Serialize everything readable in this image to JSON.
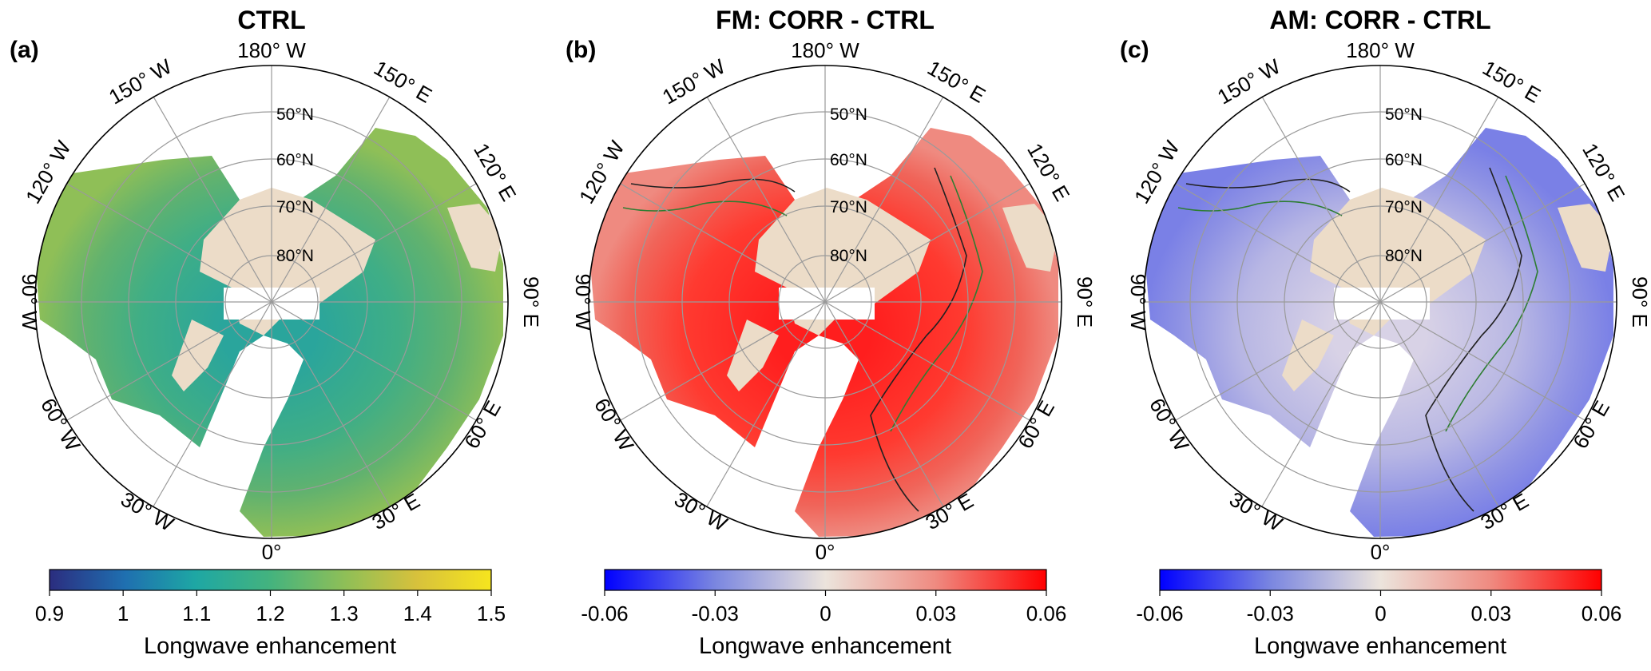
{
  "colors": {
    "land_mask": "#ecdcc8",
    "coast": "#222222",
    "contour_green": "#2e7d32",
    "grid": "#9a9a9a"
  },
  "colormaps": {
    "viridis_like": [
      "#2b2d7f",
      "#1f6fb0",
      "#1ea7a4",
      "#44b37e",
      "#8fbf57",
      "#d7c13c",
      "#f6e51e"
    ],
    "diverging": [
      "#0000ff",
      "#7a86e0",
      "#ece4dc",
      "#ef8a80",
      "#ff0000"
    ]
  },
  "chart_data": [
    {
      "type": "heatmap",
      "panel_label": "(a)",
      "title": "CTRL",
      "projection": "north-polar-stereographic",
      "longitude_labels": [
        "180° W",
        "150° E",
        "120° E",
        "90° E",
        "60° E",
        "30° E",
        "0°",
        "30° W",
        "60° W",
        "90° W",
        "120° W",
        "150° W"
      ],
      "latitude_labels": [
        "50°N",
        "60°N",
        "70°N",
        "80°N"
      ],
      "colorbar": {
        "label": "Longwave enhancement",
        "range": [
          0.9,
          1.5
        ],
        "ticks": [
          "0.9",
          "1",
          "1.1",
          "1.2",
          "1.3",
          "1.4",
          "1.5"
        ],
        "colormap": "viridis_like"
      },
      "typical_value": 1.22
    },
    {
      "type": "heatmap",
      "panel_label": "(b)",
      "title": "FM: CORR - CTRL",
      "projection": "north-polar-stereographic",
      "longitude_labels": [
        "180° W",
        "150° E",
        "120° E",
        "90° E",
        "60° E",
        "30° E",
        "0°",
        "30° W",
        "60° W",
        "90° W",
        "120° W",
        "150° W"
      ],
      "latitude_labels": [
        "50°N",
        "60°N",
        "70°N",
        "80°N"
      ],
      "colorbar": {
        "label": "Longwave enhancement",
        "range": [
          -0.06,
          0.06
        ],
        "ticks": [
          "-0.06",
          "-0.03",
          "0",
          "0.03",
          "0.06"
        ],
        "colormap": "diverging"
      },
      "typical_value": 0.045
    },
    {
      "type": "heatmap",
      "panel_label": "(c)",
      "title": "AM: CORR - CTRL",
      "projection": "north-polar-stereographic",
      "longitude_labels": [
        "180° W",
        "150° E",
        "120° E",
        "90° E",
        "60° E",
        "30° E",
        "0°",
        "30° W",
        "60° W",
        "90° W",
        "120° W",
        "150° W"
      ],
      "latitude_labels": [
        "50°N",
        "60°N",
        "70°N",
        "80°N"
      ],
      "colorbar": {
        "label": "Longwave enhancement",
        "range": [
          -0.06,
          0.06
        ],
        "ticks": [
          "-0.06",
          "-0.03",
          "0",
          "0.03",
          "0.06"
        ],
        "colormap": "diverging"
      },
      "typical_value": -0.02
    }
  ]
}
